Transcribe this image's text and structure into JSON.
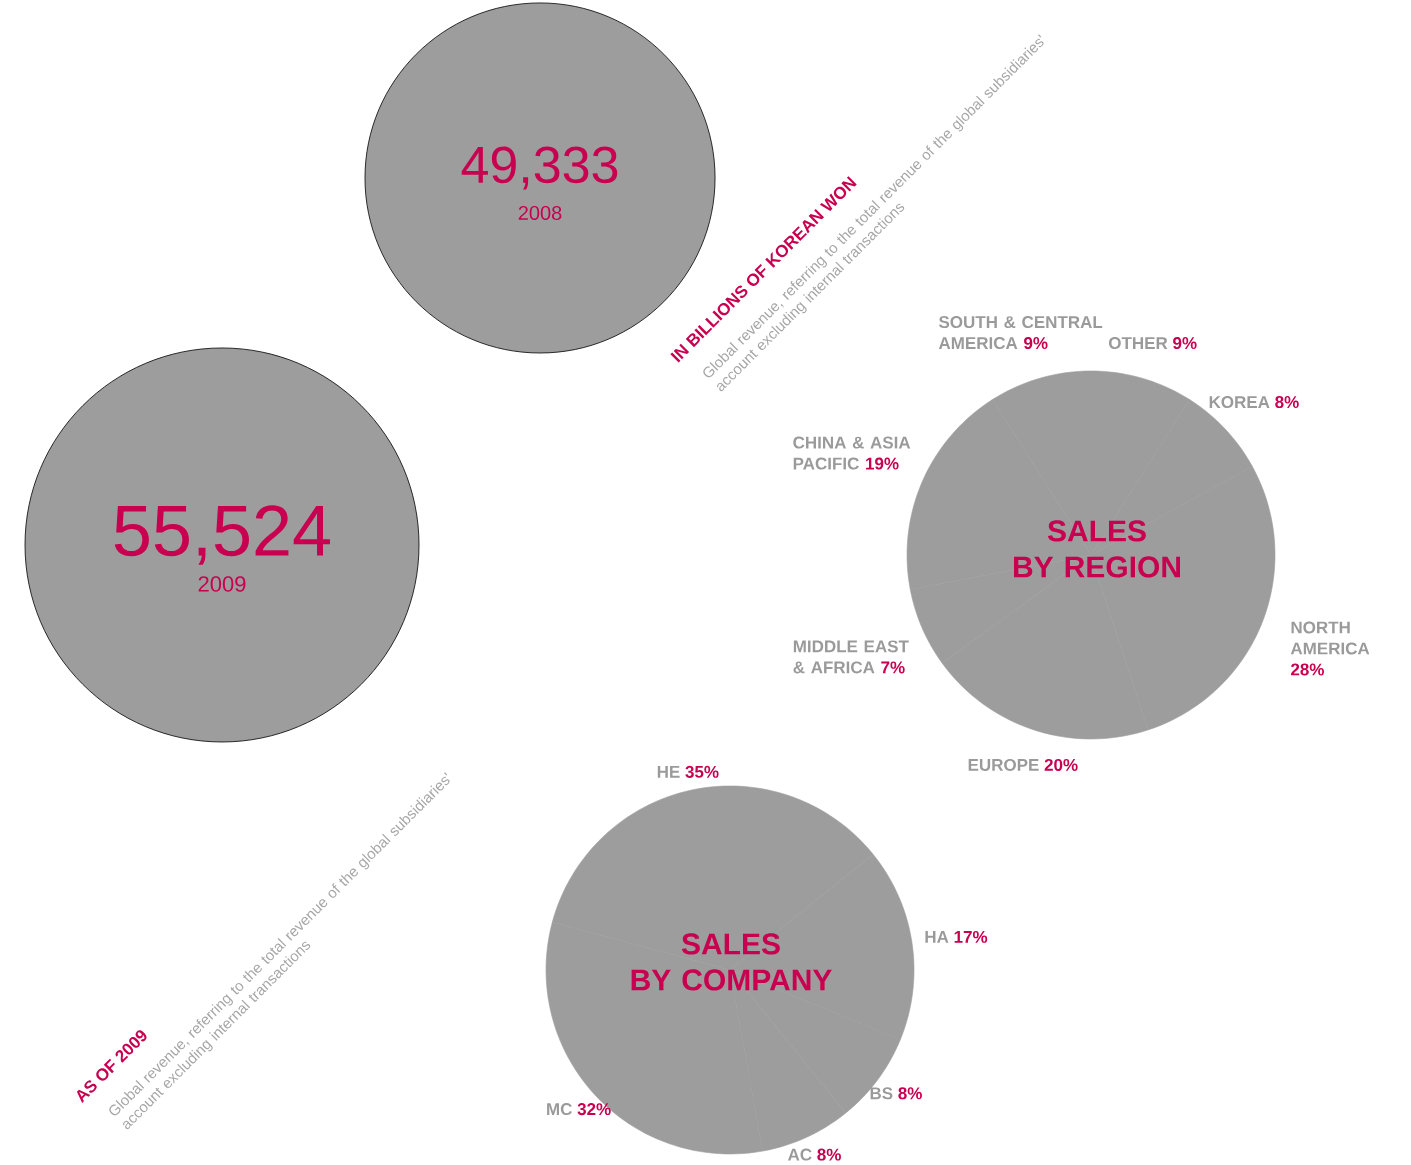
{
  "chart_data": [
    {
      "type": "other",
      "categories": [
        "2008",
        "2009"
      ],
      "values": [
        49333,
        55524
      ],
      "value_labels": [
        "49,333",
        "55,524"
      ],
      "color": "#9d9d9d",
      "annotations": [
        "IN BILLIONS OF KOREAN WON",
        "Global revenue, referring to the total revenue of the global subsidiaries' account excluding internal transactions",
        "AS OF 2009",
        "Global revenue, referring to the total revenue of the global subsidiaries' account excluding internal transactions"
      ]
    },
    {
      "type": "pie",
      "title": "SALES BY REGION",
      "categories": [
        "OTHER",
        "KOREA",
        "NORTH AMERICA",
        "EUROPE",
        "MIDDLE EAST & AFRICA",
        "CHINA & ASIA PACIFIC",
        "SOUTH & CENTRAL AMERICA"
      ],
      "values": [
        9,
        8,
        28,
        20,
        7,
        19,
        9
      ],
      "value_labels": [
        "9%",
        "8%",
        "28%",
        "20%",
        "7%",
        "19%",
        "9%"
      ],
      "color": "#9d9d9d"
    },
    {
      "type": "pie",
      "title": "SALES BY COMPANY",
      "categories": [
        "HE",
        "HA",
        "BS",
        "AC",
        "MC"
      ],
      "values": [
        35,
        17,
        8,
        8,
        32
      ],
      "value_labels": [
        "35%",
        "17%",
        "8%",
        "8%",
        "32%"
      ],
      "color": "#9d9d9d"
    }
  ]
}
